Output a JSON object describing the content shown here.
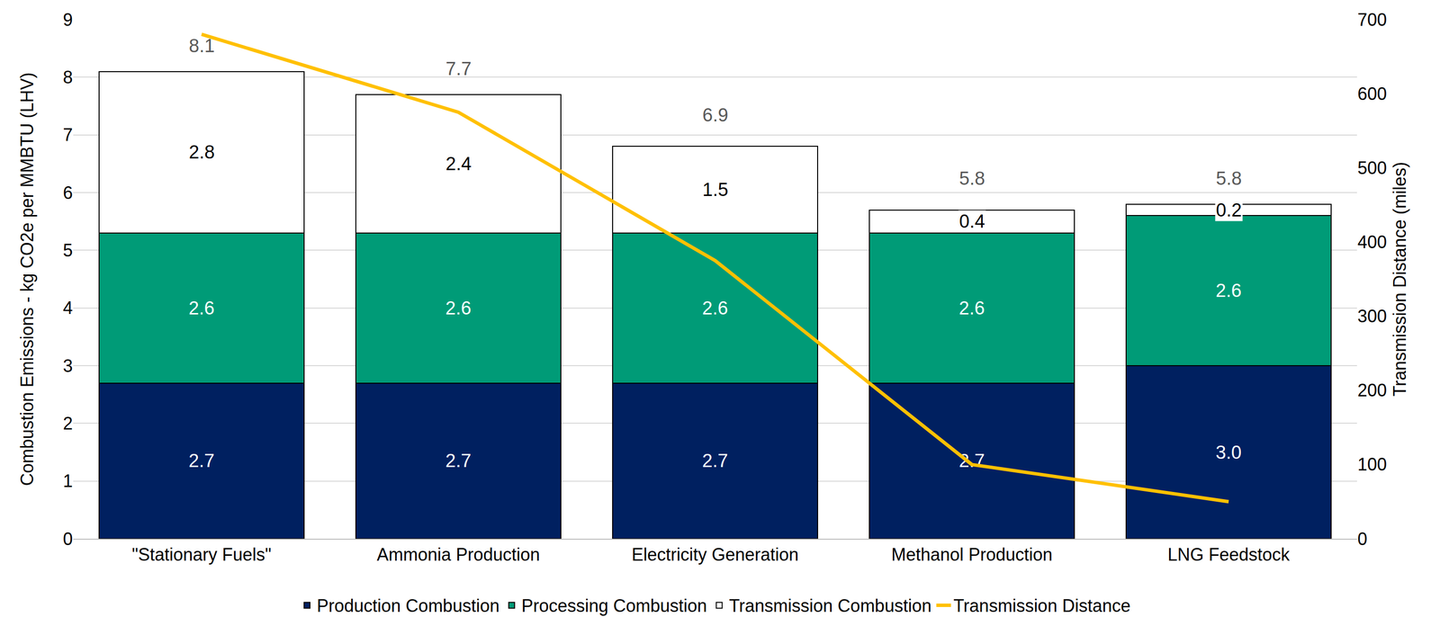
{
  "chart_data": {
    "type": "bar",
    "stacked": true,
    "data_labels": true,
    "grid": true,
    "legend": "bottom",
    "categories": [
      "\"Stationary Fuels\"",
      "Ammonia Production",
      "Electricity Generation",
      "Methanol Production",
      "LNG Feedstock"
    ],
    "y_label": "Combustion Emissions - kg CO2e per MMBTU (LHV)",
    "y2_label": "Transmission Distance (miles)",
    "ylim": [
      0,
      9
    ],
    "yticks": [
      0,
      1,
      2,
      3,
      4,
      5,
      6,
      7,
      8,
      9
    ],
    "y2lim": [
      0,
      700
    ],
    "y2ticks": [
      0,
      100,
      200,
      300,
      400,
      500,
      600,
      700
    ],
    "totals": [
      8.1,
      7.7,
      6.9,
      5.8,
      5.8
    ],
    "series": [
      {
        "name": "Production Combustion",
        "type": "bar",
        "color": "#002060",
        "values": [
          2.7,
          2.7,
          2.7,
          2.7,
          3.0
        ],
        "value_labels": [
          "2.7",
          "2.7",
          "2.7",
          "2.7",
          "3.0"
        ]
      },
      {
        "name": "Processing Combustion",
        "type": "bar",
        "color": "#009B77",
        "values": [
          2.6,
          2.6,
          2.6,
          2.6,
          2.6
        ]
      },
      {
        "name": "Transmission Combustion",
        "type": "bar",
        "color": "#FFFFFF",
        "values": [
          2.8,
          2.4,
          1.5,
          0.4,
          0.2
        ]
      },
      {
        "name": "Transmission Distance",
        "type": "line",
        "axis": "y2",
        "color": "#FFC000",
        "values": [
          680,
          575,
          375,
          100,
          50
        ]
      }
    ]
  }
}
